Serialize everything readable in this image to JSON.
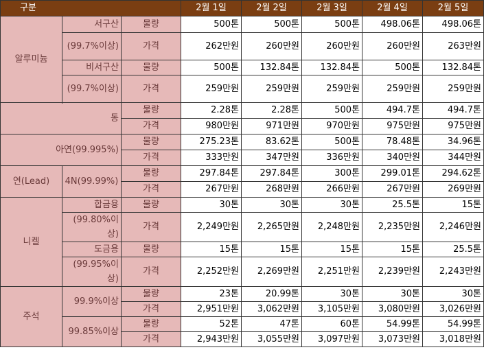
{
  "header": {
    "category": "구분",
    "dates": [
      "2월 1일",
      "2월 2일",
      "2월 3일",
      "2월 4일",
      "2월 5일"
    ]
  },
  "labels": {
    "qty": "물량",
    "price": "가격"
  },
  "aluminum": {
    "name": "알루미늄",
    "westside": {
      "name": "서구산",
      "purity": "(99.7%이상)",
      "qty": [
        "500톤",
        "500톤",
        "500톤",
        "498.06톤",
        "498.06톤"
      ],
      "price": [
        "262만원",
        "260만원",
        "260만원",
        "260만원",
        "263만원"
      ]
    },
    "non_westside": {
      "name": "비서구산",
      "purity": "(99.7%이상)",
      "qty": [
        "500톤",
        "132.84톤",
        "132.84톤",
        "500톤",
        "132.84톤"
      ],
      "price": [
        "259만원",
        "259만원",
        "259만원",
        "259만원",
        "259만원"
      ]
    }
  },
  "copper": {
    "name": "동",
    "qty": [
      "2.28톤",
      "2.28톤",
      "500톤",
      "494.7톤",
      "494.7톤"
    ],
    "price": [
      "980만원",
      "971만원",
      "970만원",
      "975만원",
      "975만원"
    ]
  },
  "zinc": {
    "name": "아연(99.995%)",
    "qty": [
      "275.23톤",
      "83.62톤",
      "500톤",
      "78.48톤",
      "34.96톤"
    ],
    "price": [
      "333만원",
      "347만원",
      "336만원",
      "340만원",
      "344만원"
    ]
  },
  "lead": {
    "name": "연(Lead)",
    "grade": "4N(99.99%)",
    "qty": [
      "297.84톤",
      "297.84톤",
      "300톤",
      "299.01톤",
      "294.62톤"
    ],
    "price": [
      "267만원",
      "268만원",
      "266만원",
      "267만원",
      "269만원"
    ]
  },
  "nickel": {
    "name": "니켈",
    "alloy": {
      "name": "합금용",
      "purity": "(99.80%이상)",
      "qty": [
        "30톤",
        "30톤",
        "30톤",
        "25.5톤",
        "15톤"
      ],
      "price": [
        "2,249만원",
        "2,265만원",
        "2,248만원",
        "2,235만원",
        "2,246만원"
      ]
    },
    "plating": {
      "name": "도금용",
      "purity": "(99.95%이상)",
      "qty": [
        "15톤",
        "15톤",
        "15톤",
        "15톤",
        "25.5톤"
      ],
      "price": [
        "2,252만원",
        "2,269만원",
        "2,251만원",
        "2,239만원",
        "2,243만원"
      ]
    }
  },
  "tin": {
    "name": "주석",
    "g999": {
      "name": "99.9%이상",
      "qty": [
        "23톤",
        "20.99톤",
        "30톤",
        "30톤",
        "30톤"
      ],
      "price": [
        "2,951만원",
        "3,062만원",
        "3,105만원",
        "3,080만원",
        "3,026만원"
      ]
    },
    "g9985": {
      "name": "99.85%이상",
      "qty": [
        "52톤",
        "47톤",
        "60톤",
        "54.99톤",
        "54.99톤"
      ],
      "price": [
        "2,943만원",
        "3,055만원",
        "3,097만원",
        "3,073만원",
        "3,018만원"
      ]
    }
  }
}
